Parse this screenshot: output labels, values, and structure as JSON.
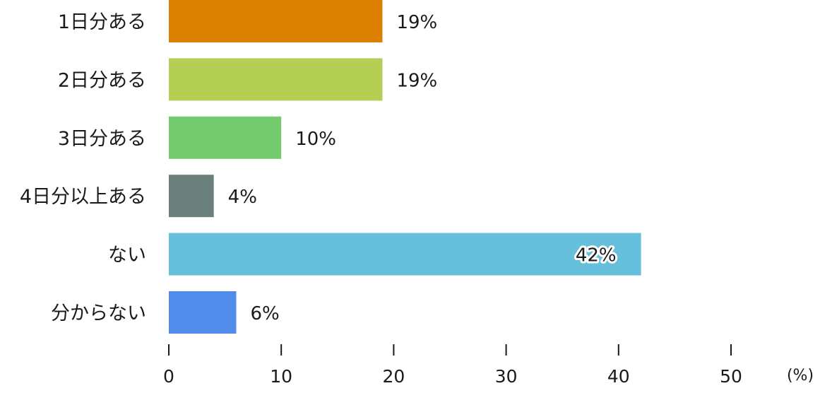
{
  "chart_data": {
    "type": "bar",
    "orientation": "horizontal",
    "categories": [
      "1日分ある",
      "2日分ある",
      "3日分ある",
      "4日分以上ある",
      "ない",
      "分からない"
    ],
    "values": [
      19,
      19,
      10,
      4,
      42,
      6
    ],
    "value_labels": [
      "19%",
      "19%",
      "10%",
      "4%",
      "42%",
      "6%"
    ],
    "colors": [
      "#DB8000",
      "#B5CF55",
      "#74CB6F",
      "#6B7F7B",
      "#66BFDB",
      "#518CEA"
    ],
    "xlim": [
      0,
      50
    ],
    "xticks": [
      0,
      10,
      20,
      30,
      40,
      50
    ],
    "unit_label": "(%)",
    "grid": false,
    "legend": "none"
  }
}
